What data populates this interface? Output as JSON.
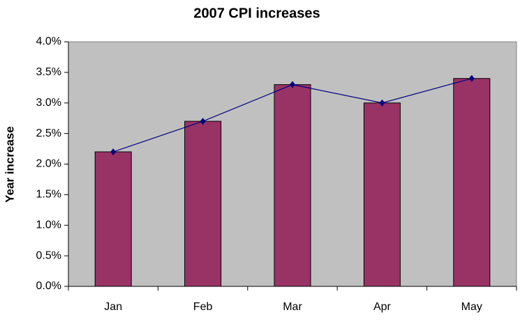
{
  "chart_data": {
    "type": "bar",
    "title": "2007 CPI increases",
    "y_label": "Year increase",
    "categories": [
      "Jan",
      "Feb",
      "Mar",
      "Apr",
      "May"
    ],
    "series": [
      {
        "type": "bar",
        "color": "#993366",
        "values": [
          2.2,
          2.7,
          3.3,
          3.0,
          3.4
        ]
      },
      {
        "type": "line",
        "color": "#000080",
        "values": [
          2.2,
          2.7,
          3.3,
          3.0,
          3.4
        ]
      }
    ],
    "ylim": [
      0,
      4
    ],
    "yticks": [
      {
        "value": 0,
        "label": "0.0%"
      },
      {
        "value": 0.5,
        "label": "0.5%"
      },
      {
        "value": 1,
        "label": "1.0%"
      },
      {
        "value": 1.5,
        "label": "1.5%"
      },
      {
        "value": 2,
        "label": "2.0%"
      },
      {
        "value": 2.5,
        "label": "2.5%"
      },
      {
        "value": 3,
        "label": "3.0%"
      },
      {
        "value": 3.5,
        "label": "3.5%"
      },
      {
        "value": 4,
        "label": "4.0%"
      }
    ],
    "plot_background": "#c0c0c0"
  }
}
